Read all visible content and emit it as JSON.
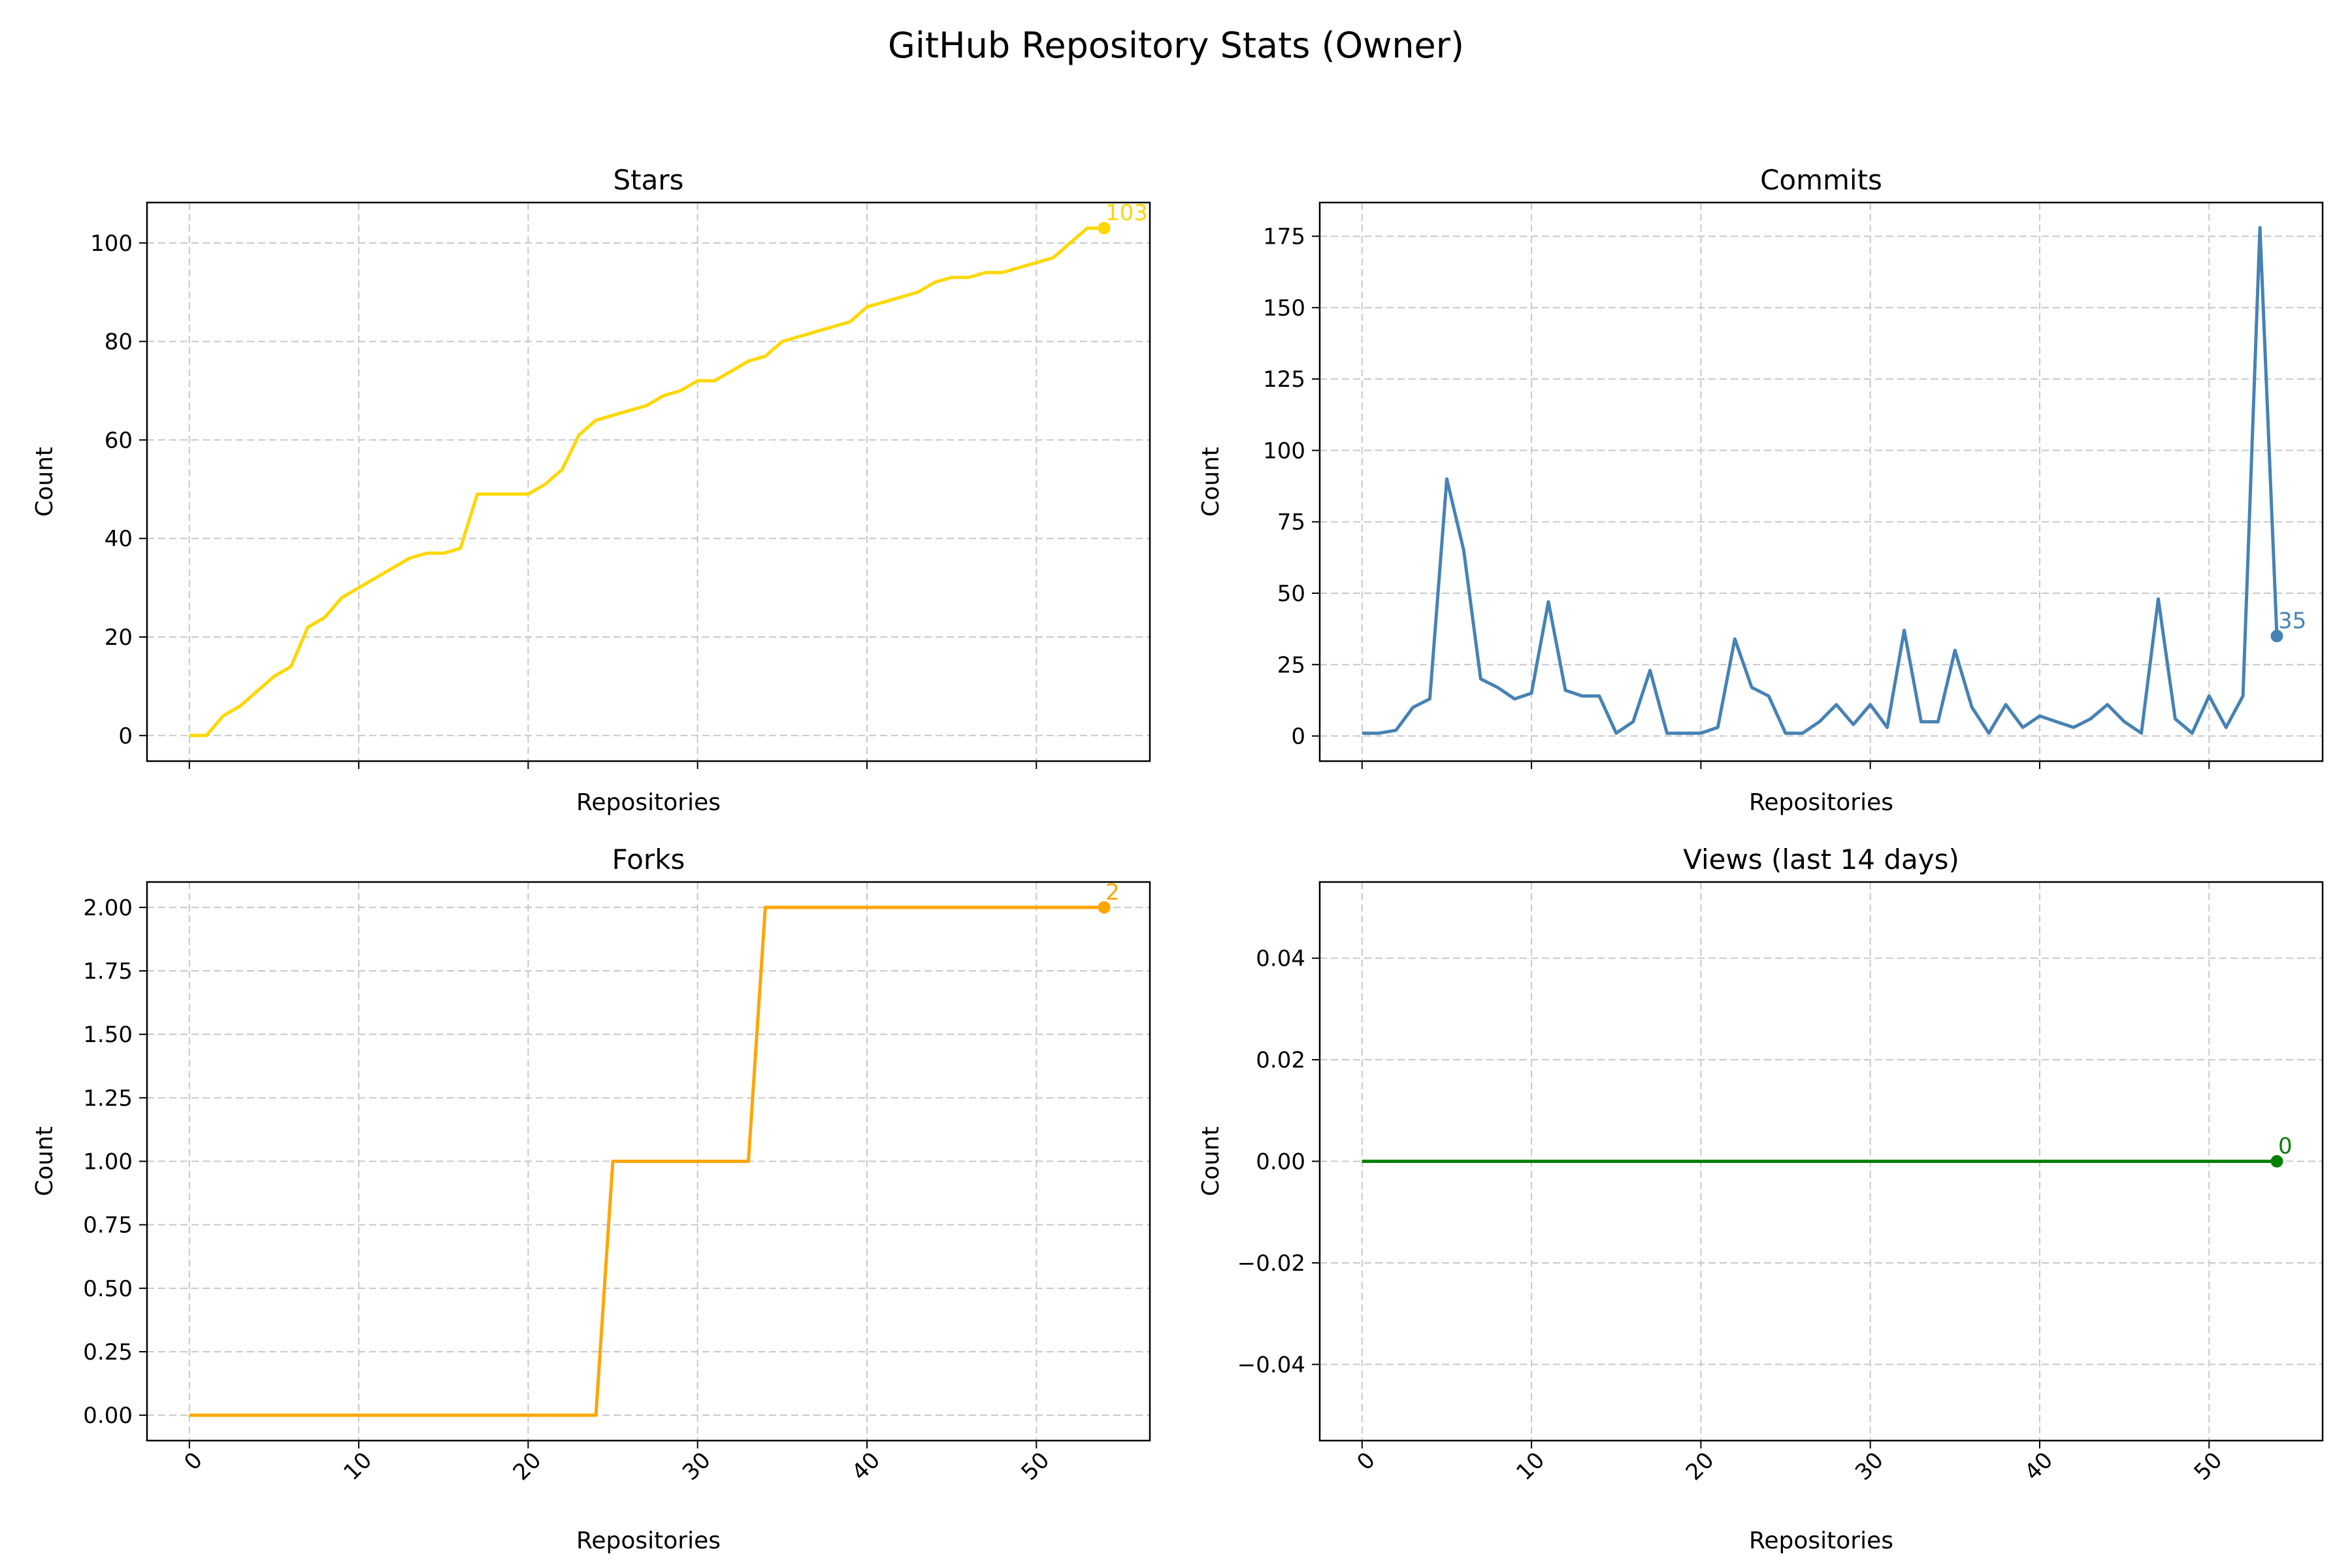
{
  "figure": {
    "title": "GitHub Repository Stats (Owner)"
  },
  "chart_data": [
    {
      "type": "line",
      "title": "Stars",
      "xlabel": "Repositories",
      "ylabel": "Count",
      "color": "#FFD700",
      "xlim": [
        -2.5,
        56.7
      ],
      "ylim": [
        -5.2,
        108.2
      ],
      "xticks": [
        "0",
        "10",
        "20",
        "30",
        "40",
        "50"
      ],
      "yticks": [
        "0",
        "20",
        "40",
        "60",
        "80",
        "100"
      ],
      "grid": true,
      "series": [
        {
          "values": [
            0,
            0,
            4,
            6,
            9,
            12,
            14,
            22,
            24,
            28,
            30,
            32,
            34,
            36,
            37,
            37,
            38,
            49,
            49,
            49,
            49,
            51,
            54,
            61,
            64,
            65,
            66,
            67,
            69,
            70,
            72,
            72,
            74,
            76,
            77,
            80,
            81,
            82,
            83,
            84,
            87,
            88,
            89,
            90,
            92,
            93,
            93,
            94,
            94,
            95,
            96,
            97,
            100,
            103,
            103
          ]
        }
      ],
      "annotation": {
        "label": "103"
      }
    },
    {
      "type": "line",
      "title": "Commits",
      "xlabel": "Repositories",
      "ylabel": "Count",
      "color": "#4682B4",
      "xlim": [
        -2.5,
        56.7
      ],
      "ylim": [
        -8.8,
        186.8
      ],
      "xticks": [
        "0",
        "10",
        "20",
        "30",
        "40",
        "50"
      ],
      "yticks": [
        "0",
        "25",
        "50",
        "75",
        "100",
        "125",
        "150",
        "175"
      ],
      "grid": true,
      "series": [
        {
          "values": [
            1,
            1,
            2,
            10,
            13,
            90,
            65,
            20,
            17,
            13,
            15,
            47,
            16,
            14,
            14,
            1,
            5,
            23,
            1,
            1,
            1,
            3,
            34,
            17,
            14,
            1,
            1,
            5,
            11,
            4,
            11,
            3,
            37,
            5,
            5,
            30,
            10,
            1,
            11,
            3,
            7,
            5,
            3,
            6,
            11,
            5,
            1,
            48,
            6,
            1,
            14,
            3,
            14,
            178,
            35
          ]
        }
      ],
      "annotation": {
        "label": "35"
      }
    },
    {
      "type": "line",
      "title": "Forks",
      "xlabel": "Repositories",
      "ylabel": "Count",
      "color": "#FFA500",
      "xlim": [
        -2.5,
        56.7
      ],
      "ylim": [
        -0.1,
        2.1
      ],
      "xticks": [
        "0",
        "10",
        "20",
        "30",
        "40",
        "50"
      ],
      "yticks": [
        "0.00",
        "0.25",
        "0.50",
        "0.75",
        "1.00",
        "1.25",
        "1.50",
        "1.75",
        "2.00"
      ],
      "grid": true,
      "series": [
        {
          "values": [
            0,
            0,
            0,
            0,
            0,
            0,
            0,
            0,
            0,
            0,
            0,
            0,
            0,
            0,
            0,
            0,
            0,
            0,
            0,
            0,
            0,
            0,
            0,
            0,
            0,
            1,
            1,
            1,
            1,
            1,
            1,
            1,
            1,
            1,
            2,
            2,
            2,
            2,
            2,
            2,
            2,
            2,
            2,
            2,
            2,
            2,
            2,
            2,
            2,
            2,
            2,
            2,
            2,
            2,
            2
          ]
        }
      ],
      "annotation": {
        "label": "2"
      }
    },
    {
      "type": "line",
      "title": "Views (last 14 days)",
      "xlabel": "Repositories",
      "ylabel": "Count",
      "color": "#008000",
      "xlim": [
        -2.5,
        56.7
      ],
      "ylim": [
        -0.055,
        0.055
      ],
      "xticks": [
        "0",
        "10",
        "20",
        "30",
        "40",
        "50"
      ],
      "yticks": [
        "−0.04",
        "−0.02",
        "0.00",
        "0.02",
        "0.04"
      ],
      "grid": true,
      "series": [
        {
          "values": [
            0,
            0,
            0,
            0,
            0,
            0,
            0,
            0,
            0,
            0,
            0,
            0,
            0,
            0,
            0,
            0,
            0,
            0,
            0,
            0,
            0,
            0,
            0,
            0,
            0,
            0,
            0,
            0,
            0,
            0,
            0,
            0,
            0,
            0,
            0,
            0,
            0,
            0,
            0,
            0,
            0,
            0,
            0,
            0,
            0,
            0,
            0,
            0,
            0,
            0,
            0,
            0,
            0,
            0,
            0
          ]
        }
      ],
      "annotation": {
        "label": "0"
      }
    }
  ]
}
